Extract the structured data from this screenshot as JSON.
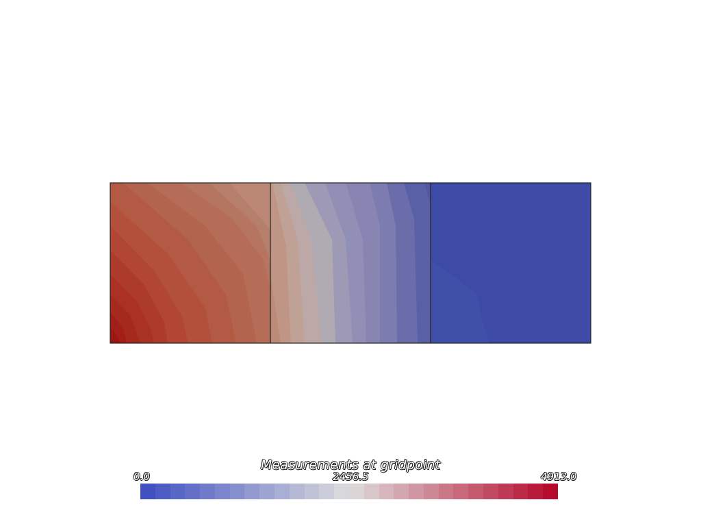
{
  "legend": {
    "title": "Measurements at gridpoint",
    "min_label": "0.0",
    "mid_label": "2456.5",
    "max_label": "4913.0",
    "range": [
      0.0,
      4913.0
    ],
    "colormap": "coolwarm",
    "colors": {
      "low": "#3b4cc0",
      "mid": "#dddddd",
      "high": "#b40426"
    },
    "num_bands": 28
  },
  "mesh": {
    "cells": [
      {
        "name": "left",
        "dominant": "high"
      },
      {
        "name": "middle",
        "dominant": "mid"
      },
      {
        "name": "right",
        "dominant": "low"
      }
    ],
    "edge_color": "#222222"
  }
}
